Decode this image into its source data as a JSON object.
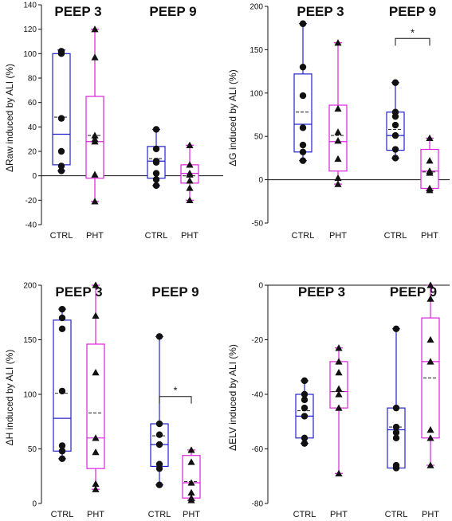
{
  "colors": {
    "ctrl": "#2222cc",
    "pht": "#dd22dd",
    "axis": "#111111",
    "marker": "#111111"
  },
  "chart_data": [
    {
      "type": "boxplot",
      "ylabel": "ΔRaw induced by ALI (%)",
      "ylim": [
        -40,
        140
      ],
      "yticks": [
        -40,
        -20,
        0,
        20,
        40,
        60,
        80,
        100,
        120,
        140
      ],
      "groups": [
        "PEEP 3",
        "PEEP 9"
      ],
      "categories": [
        "CTRL",
        "PHT",
        "CTRL",
        "PHT"
      ],
      "zero_line": true,
      "significance": [],
      "boxes": [
        {
          "group": "PEEP 3",
          "category": "CTRL",
          "min": 4,
          "q1": 9,
          "median": 34,
          "mean": 48,
          "q3": 100,
          "max": 103,
          "points": [
            4,
            8,
            20,
            47,
            100,
            101,
            102
          ]
        },
        {
          "group": "PEEP 3",
          "category": "PHT",
          "min": -21,
          "q1": -2,
          "median": 28,
          "mean": 33,
          "q3": 65,
          "max": 120,
          "points": [
            -21,
            1,
            28,
            30,
            33,
            97,
            120
          ]
        },
        {
          "group": "PEEP 9",
          "category": "CTRL",
          "min": -8,
          "q1": -2,
          "median": 12,
          "mean": 14,
          "q3": 24,
          "max": 38,
          "points": [
            -8,
            -3,
            2,
            11,
            12,
            22,
            38
          ]
        },
        {
          "group": "PEEP 9",
          "category": "PHT",
          "min": -20,
          "q1": -6,
          "median": 2,
          "mean": 0,
          "q3": 9,
          "max": 25,
          "points": [
            -20,
            -10,
            -4,
            1,
            2,
            9,
            25
          ]
        }
      ]
    },
    {
      "type": "boxplot",
      "ylabel": "ΔG induced by ALI (%)",
      "ylim": [
        -50,
        200
      ],
      "yticks": [
        -50,
        0,
        50,
        100,
        150,
        200
      ],
      "groups": [
        "PEEP 3",
        "PEEP 9"
      ],
      "categories": [
        "CTRL",
        "PHT",
        "CTRL",
        "PHT"
      ],
      "zero_line": true,
      "significance": [
        {
          "between": [
            2,
            3
          ],
          "label": "*",
          "y": 163
        }
      ],
      "boxes": [
        {
          "group": "PEEP 3",
          "category": "CTRL",
          "min": 22,
          "q1": 32,
          "median": 64,
          "mean": 78,
          "q3": 122,
          "max": 180,
          "points": [
            22,
            32,
            40,
            60,
            97,
            130,
            180
          ]
        },
        {
          "group": "PEEP 3",
          "category": "PHT",
          "min": -5,
          "q1": 10,
          "median": 44,
          "mean": 51,
          "q3": 86,
          "max": 158,
          "points": [
            -5,
            2,
            24,
            45,
            55,
            82,
            158
          ]
        },
        {
          "group": "PEEP 9",
          "category": "CTRL",
          "min": 25,
          "q1": 34,
          "median": 51,
          "mean": 58,
          "q3": 78,
          "max": 112,
          "points": [
            25,
            35,
            51,
            63,
            73,
            78,
            112
          ]
        },
        {
          "group": "PEEP 9",
          "category": "PHT",
          "min": -12,
          "q1": -10,
          "median": 10,
          "mean": 9,
          "q3": 35,
          "max": 48,
          "points": [
            -12,
            -10,
            8,
            10,
            22,
            48
          ]
        }
      ]
    },
    {
      "type": "boxplot",
      "ylabel": "ΔH induced by ALI (%)",
      "ylim": [
        0,
        200
      ],
      "yticks": [
        0,
        50,
        100,
        150,
        200
      ],
      "groups": [
        "PEEP 3",
        "PEEP 9"
      ],
      "categories": [
        "CTRL",
        "PHT",
        "CTRL",
        "PHT"
      ],
      "zero_line": false,
      "significance": [
        {
          "between": [
            2,
            3
          ],
          "label": "*",
          "y": 98
        }
      ],
      "boxes": [
        {
          "group": "PEEP 3",
          "category": "CTRL",
          "min": 41,
          "q1": 48,
          "median": 78,
          "mean": 101,
          "q3": 168,
          "max": 178,
          "points": [
            41,
            48,
            53,
            103,
            160,
            170,
            178
          ]
        },
        {
          "group": "PEEP 3",
          "category": "PHT",
          "min": 13,
          "q1": 32,
          "median": 60,
          "mean": 83,
          "q3": 146,
          "max": 200,
          "points": [
            13,
            18,
            47,
            60,
            120,
            172,
            200
          ]
        },
        {
          "group": "PEEP 9",
          "category": "CTRL",
          "min": 17,
          "q1": 34,
          "median": 54,
          "mean": 62,
          "q3": 73,
          "max": 153,
          "points": [
            17,
            32,
            36,
            54,
            63,
            73,
            153
          ]
        },
        {
          "group": "PEEP 9",
          "category": "PHT",
          "min": 3,
          "q1": 5,
          "median": 19,
          "mean": 20,
          "q3": 44,
          "max": 49,
          "points": [
            3,
            5,
            10,
            19,
            38,
            49
          ]
        }
      ]
    },
    {
      "type": "boxplot",
      "ylabel": "ΔELV induced by ALI (%)",
      "ylim": [
        -80,
        0
      ],
      "yticks": [
        -80,
        -60,
        -40,
        -20,
        0
      ],
      "groups": [
        "PEEP 3",
        "PEEP 9"
      ],
      "categories": [
        "CTRL",
        "PHT",
        "CTRL",
        "PHT"
      ],
      "zero_line": true,
      "significance": [],
      "boxes": [
        {
          "group": "PEEP 3",
          "category": "CTRL",
          "min": -58,
          "q1": -56,
          "median": -48,
          "mean": -46,
          "q3": -40,
          "max": -35,
          "points": [
            -58,
            -56,
            -48,
            -45,
            -42,
            -40,
            -35
          ]
        },
        {
          "group": "PEEP 3",
          "category": "PHT",
          "min": -69,
          "q1": -45,
          "median": -39,
          "mean": -39,
          "q3": -28,
          "max": -23,
          "points": [
            -69,
            -45,
            -40,
            -38,
            -32,
            -28,
            -23
          ]
        },
        {
          "group": "PEEP 9",
          "category": "CTRL",
          "min": -67,
          "q1": -67,
          "median": -53,
          "mean": -52,
          "q3": -45,
          "max": -16,
          "points": [
            -67,
            -66,
            -56,
            -54,
            -52,
            -45,
            -16
          ]
        },
        {
          "group": "PEEP 9",
          "category": "PHT",
          "min": -66,
          "q1": -56,
          "median": -28,
          "mean": -34,
          "q3": -12,
          "max": 0,
          "points": [
            -66,
            -56,
            -53,
            -28,
            -20,
            -5,
            0
          ]
        }
      ]
    }
  ]
}
